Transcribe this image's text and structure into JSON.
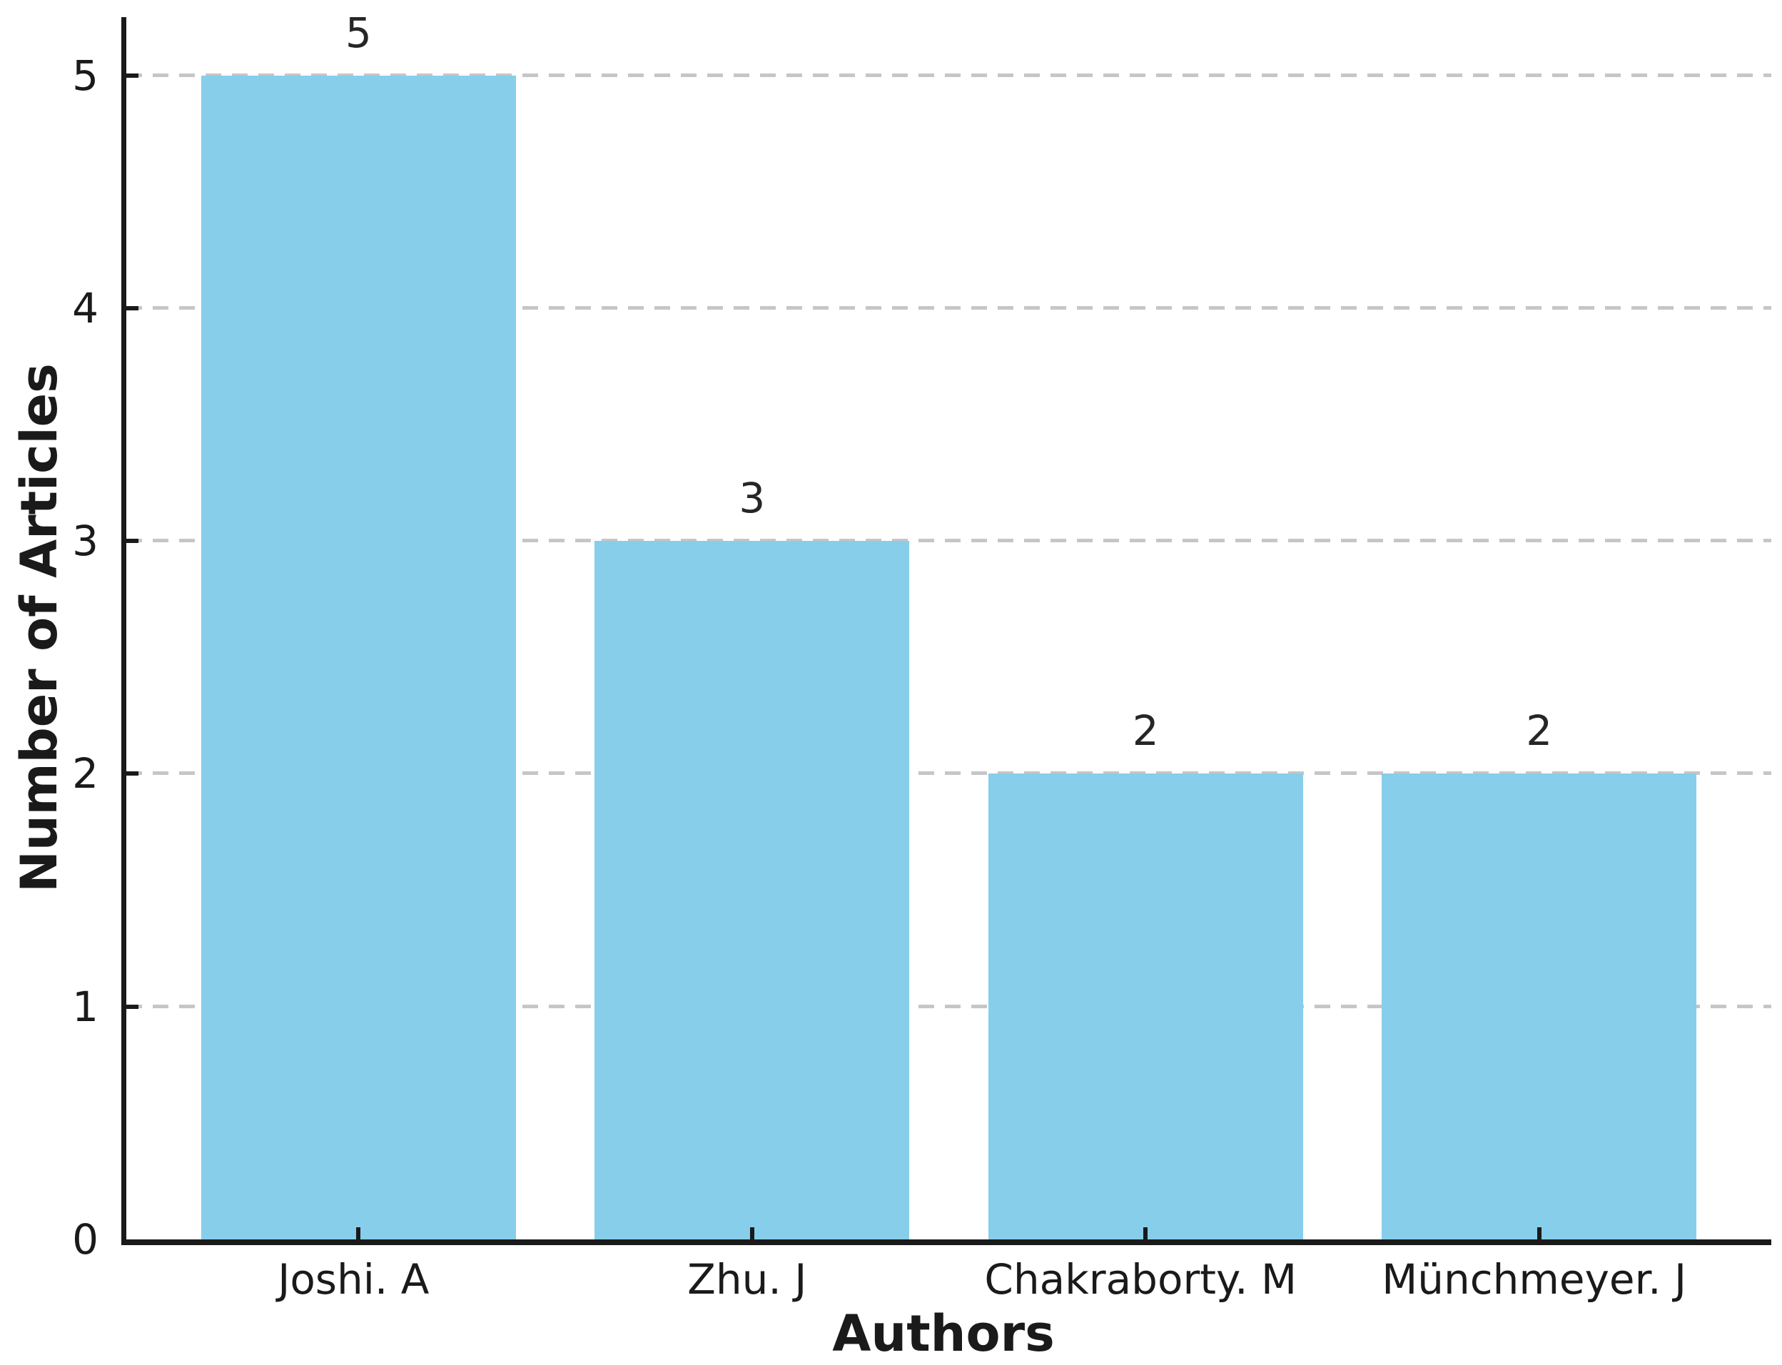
{
  "chart_data": {
    "type": "bar",
    "title": "",
    "xlabel": "Authors",
    "ylabel": "Number of Articles",
    "categories": [
      "Joshi. A",
      "Zhu. J",
      "Chakraborty. M",
      "Münchmeyer. J"
    ],
    "values": [
      5,
      3,
      2,
      2
    ],
    "bar_value_labels": [
      "5",
      "3",
      "2",
      "2"
    ],
    "yticks": [
      "0",
      "1",
      "2",
      "3",
      "4",
      "5"
    ],
    "ylim": [
      0,
      5.25
    ],
    "xlim": [
      -0.59,
      3.59
    ],
    "bar_width_fraction": 0.8,
    "grid": "horizontal dashed",
    "legend_position": "none",
    "colors": {
      "bar": "#87CEEB",
      "grid": "#C6C6C6",
      "axis": "#1A1A1A",
      "tick_label": "#1A1A1A",
      "value_label": "#262626",
      "background": "#FFFFFF"
    }
  }
}
